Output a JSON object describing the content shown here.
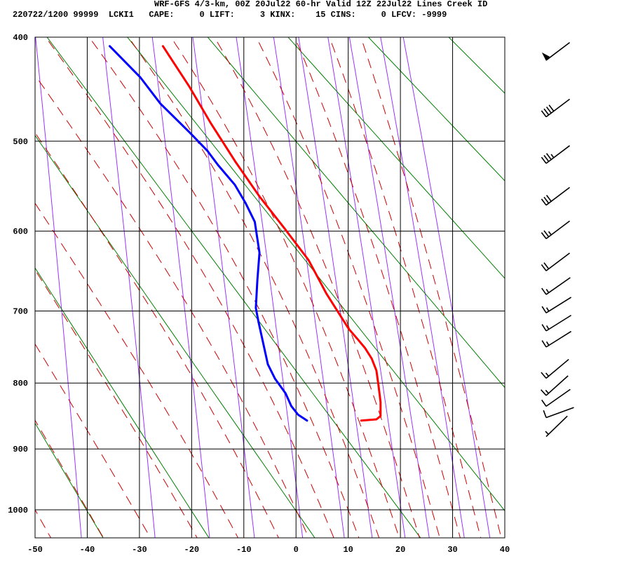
{
  "header": {
    "title": "WRF-GFS 4/3-km, 00Z 20Jul22 60-hr Valid 12Z 22Jul22 Lines Creek ID",
    "stats_line": "220722/1200 99999  LCKI1   CAPE:     0 LIFT:     3 KINX:    15 CINS:     0 LFCV: -9999"
  },
  "chart_data": {
    "type": "line",
    "diagram": "Stuve thermodynamic diagram (sounding)",
    "xlabel": "",
    "ylabel": "",
    "xlim": [
      -50,
      40
    ],
    "ylim_hPa": [
      1045,
      400
    ],
    "x_ticks": [
      -50,
      -40,
      -30,
      -20,
      -10,
      0,
      10,
      20,
      30,
      40
    ],
    "y_ticks": [
      400,
      500,
      600,
      700,
      800,
      900,
      1000
    ],
    "grid": true,
    "colors": {
      "temperature": "#ff0000",
      "dewpoint": "#0000ff",
      "dry_adiabat": "#008000",
      "moist_adiabat": "#cc0000",
      "mixing_ratio": "#9933ff",
      "grid": "#000000"
    },
    "dry_adiabats_thetaK": [
      233,
      253,
      273,
      293,
      313,
      333,
      353,
      373,
      393,
      413,
      433
    ],
    "moist_adiabats_T1000C": [
      -50,
      -40,
      -31,
      -22,
      -14,
      -6,
      0,
      5,
      10,
      14,
      18,
      22,
      26,
      30,
      34,
      38
    ],
    "mixing_ratio_lines_gkg": [
      0.1,
      0.4,
      1,
      2,
      4,
      7,
      10,
      15,
      20,
      30,
      40
    ],
    "series": [
      {
        "key": "temperature",
        "p": [
          408,
          446,
          481,
          521,
          560,
          596,
          635,
          677,
          704,
          724,
          738,
          750,
          765,
          782,
          803,
          828,
          849,
          854,
          856
        ],
        "T": [
          -25.5,
          -20.4,
          -16.4,
          -11.7,
          -7.0,
          -2.3,
          2.4,
          5.8,
          8.3,
          10.1,
          11.8,
          13.2,
          14.5,
          15.4,
          15.8,
          16.2,
          16.2,
          15.4,
          12.5
        ]
      },
      {
        "key": "dewpoint",
        "p": [
          408,
          437,
          462,
          491,
          510,
          525,
          547,
          567,
          589,
          626,
          660,
          696,
          714,
          743,
          773,
          794,
          815,
          834,
          847,
          856
        ],
        "T": [
          -35.7,
          -29.8,
          -26.0,
          -20.4,
          -17.0,
          -15.0,
          -11.7,
          -9.7,
          -7.9,
          -7.0,
          -7.4,
          -7.7,
          -7.2,
          -6.3,
          -5.4,
          -4.0,
          -2.0,
          -0.9,
          0.4,
          2.1
        ]
      }
    ],
    "wind_barbs": [
      {
        "p": 417,
        "speed_kt": 50,
        "dir_deg": 53
      },
      {
        "p": 471,
        "speed_kt": 40,
        "dir_deg": 53
      },
      {
        "p": 519,
        "speed_kt": 35,
        "dir_deg": 53
      },
      {
        "p": 565,
        "speed_kt": 30,
        "dir_deg": 53
      },
      {
        "p": 604,
        "speed_kt": 25,
        "dir_deg": 53
      },
      {
        "p": 643,
        "speed_kt": 20,
        "dir_deg": 53
      },
      {
        "p": 673,
        "speed_kt": 15,
        "dir_deg": 55
      },
      {
        "p": 697,
        "speed_kt": 15,
        "dir_deg": 58
      },
      {
        "p": 721,
        "speed_kt": 15,
        "dir_deg": 58
      },
      {
        "p": 743,
        "speed_kt": 15,
        "dir_deg": 58
      },
      {
        "p": 787,
        "speed_kt": 15,
        "dir_deg": 50
      },
      {
        "p": 812,
        "speed_kt": 15,
        "dir_deg": 48
      },
      {
        "p": 828,
        "speed_kt": 10,
        "dir_deg": 55
      },
      {
        "p": 845,
        "speed_kt": 10,
        "dir_deg": 70
      },
      {
        "p": 874,
        "speed_kt": 5,
        "dir_deg": 46
      }
    ]
  }
}
